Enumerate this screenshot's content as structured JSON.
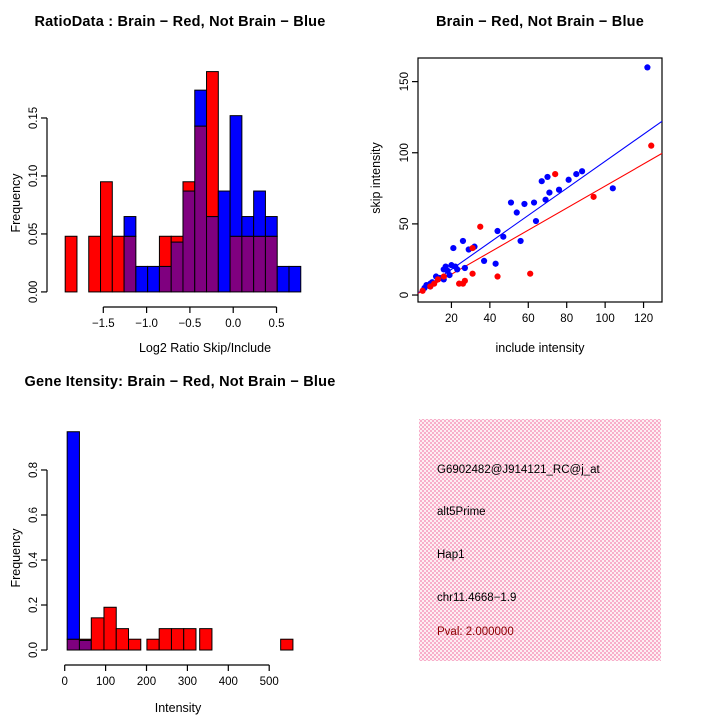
{
  "colors": {
    "red": "#FF0000",
    "blue": "#0000FF",
    "overlap": "#7F007F",
    "axis": "#000000",
    "pval_text": "#8B0000",
    "info_dot": "#F799BD",
    "info_bg": "#FDEEF2"
  },
  "info_box": {
    "probe_id": "G6902482@J914121_RC@j_at",
    "splice_type": "alt5Prime",
    "sample": "Hap1",
    "location": "chr11.4668−1.9",
    "pval": "Pval: 2.000000"
  },
  "chart_data": [
    {
      "id": "ratio-histogram-plot",
      "type": "bar",
      "subtype": "overlaid-histogram",
      "title": "RatioData : Brain − Red, Not Brain − Blue",
      "xlabel": "Log2 Ratio Skip/Include",
      "ylabel": "Frequency",
      "legend": {
        "Brain": "red",
        "Not Brain": "blue",
        "overlap": "purple"
      },
      "xlim": [
        -2.15,
        0.875
      ],
      "ylim": [
        -0.013,
        0.2
      ],
      "region": {
        "l": 47,
        "r": 309,
        "t": 60,
        "b": 307
      },
      "xaxis": {
        "y": 307,
        "line": [
          -1.5,
          0.5
        ],
        "ticks": [
          -1.5,
          -1.0,
          -0.5,
          0.0,
          0.5
        ],
        "labels": [
          "−1.5",
          "−1.0",
          "−0.5",
          "0.0",
          "0.5"
        ]
      },
      "yaxis": {
        "x": 47,
        "line": [
          0,
          0.15
        ],
        "ticks": [
          0,
          0.05,
          0.1,
          0.15
        ],
        "labels": [
          "0.00",
          "0.05",
          "0.10",
          "0.15"
        ]
      },
      "bins": [
        {
          "x0": -1.94,
          "x1": -1.804,
          "red": 0.048,
          "blue": 0
        },
        {
          "x0": -1.668,
          "x1": -1.532,
          "red": 0.048,
          "blue": 0
        },
        {
          "x0": -1.532,
          "x1": -1.396,
          "red": 0.095,
          "blue": 0
        },
        {
          "x0": -1.396,
          "x1": -1.26,
          "red": 0.048,
          "blue": 0
        },
        {
          "x0": -1.26,
          "x1": -1.124,
          "red": 0.048,
          "blue": 0.065
        },
        {
          "x0": -1.124,
          "x1": -0.988,
          "red": 0,
          "blue": 0.022
        },
        {
          "x0": -0.988,
          "x1": -0.852,
          "red": 0,
          "blue": 0.022
        },
        {
          "x0": -0.852,
          "x1": -0.716,
          "red": 0.048,
          "blue": 0.022
        },
        {
          "x0": -0.716,
          "x1": -0.58,
          "red": 0.048,
          "blue": 0.043
        },
        {
          "x0": -0.58,
          "x1": -0.444,
          "red": 0.095,
          "blue": 0.087
        },
        {
          "x0": -0.444,
          "x1": -0.308,
          "red": 0.143,
          "blue": 0.174
        },
        {
          "x0": -0.308,
          "x1": -0.172,
          "red": 0.19,
          "blue": 0.065
        },
        {
          "x0": -0.172,
          "x1": -0.036,
          "red": 0,
          "blue": 0.087
        },
        {
          "x0": -0.036,
          "x1": 0.1,
          "red": 0.048,
          "blue": 0.152
        },
        {
          "x0": 0.1,
          "x1": 0.236,
          "red": 0.048,
          "blue": 0.065
        },
        {
          "x0": 0.236,
          "x1": 0.372,
          "red": 0.048,
          "blue": 0.087
        },
        {
          "x0": 0.372,
          "x1": 0.508,
          "red": 0.048,
          "blue": 0.065
        },
        {
          "x0": 0.508,
          "x1": 0.644,
          "red": 0,
          "blue": 0.022
        },
        {
          "x0": 0.644,
          "x1": 0.78,
          "red": 0,
          "blue": 0.022
        }
      ]
    },
    {
      "id": "intensity-scatter-plot",
      "type": "scatter",
      "title": "Brain − Red, Not Brain − Blue",
      "xlabel": "include intensity",
      "ylabel": "skip intensity",
      "xlim": [
        2.6,
        129.6
      ],
      "ylim": [
        -4.9,
        166.6
      ],
      "region": {
        "l": 58,
        "r": 302,
        "t": 58,
        "b": 302
      },
      "box": true,
      "xaxis": {
        "y": 302,
        "ticks": [
          20,
          40,
          60,
          80,
          100,
          120
        ],
        "labels": [
          "20",
          "40",
          "60",
          "80",
          "100",
          "120"
        ]
      },
      "yaxis": {
        "x": 58,
        "ticks": [
          0,
          50,
          100,
          150
        ],
        "labels": [
          "0",
          "50",
          "100",
          "150"
        ]
      },
      "ablines": [
        {
          "slope": 0.95,
          "intercept": -1.0,
          "color": "blue"
        },
        {
          "slope": 0.775,
          "intercept": -0.9,
          "color": "red"
        }
      ],
      "blue_points": [
        [
          6,
          5
        ],
        [
          7,
          7
        ],
        [
          9,
          6
        ],
        [
          9,
          8
        ],
        [
          10,
          9
        ],
        [
          12,
          13
        ],
        [
          14,
          12
        ],
        [
          16,
          11
        ],
        [
          16,
          18
        ],
        [
          17,
          20
        ],
        [
          18,
          17
        ],
        [
          19,
          14
        ],
        [
          20,
          21
        ],
        [
          21,
          33
        ],
        [
          22,
          20
        ],
        [
          23,
          18
        ],
        [
          26,
          38
        ],
        [
          27,
          19
        ],
        [
          29,
          32
        ],
        [
          32,
          34
        ],
        [
          37,
          24
        ],
        [
          43,
          22
        ],
        [
          44,
          45
        ],
        [
          47,
          41
        ],
        [
          51,
          65
        ],
        [
          54,
          58
        ],
        [
          56,
          38
        ],
        [
          58,
          64
        ],
        [
          63,
          65
        ],
        [
          64,
          52
        ],
        [
          67,
          80
        ],
        [
          69,
          67
        ],
        [
          70,
          83
        ],
        [
          71,
          72
        ],
        [
          76,
          74
        ],
        [
          81,
          81
        ],
        [
          85,
          85
        ],
        [
          88,
          87
        ],
        [
          104,
          75
        ],
        [
          122,
          160
        ]
      ],
      "red_points": [
        [
          5,
          3
        ],
        [
          9,
          6
        ],
        [
          11,
          8
        ],
        [
          13,
          11
        ],
        [
          16,
          13
        ],
        [
          24,
          8
        ],
        [
          26,
          8
        ],
        [
          27,
          10
        ],
        [
          31,
          15
        ],
        [
          31,
          33
        ],
        [
          35,
          48
        ],
        [
          44,
          13
        ],
        [
          61,
          15
        ],
        [
          74,
          85
        ],
        [
          94,
          69
        ],
        [
          124,
          105
        ]
      ]
    },
    {
      "id": "gene-histogram-plot",
      "type": "bar",
      "subtype": "overlaid-histogram",
      "title": "Gene Itensity: Brain − Red, Not Brain − Blue",
      "xlabel": "Intensity",
      "ylabel": "Frequency",
      "xlim": [
        -43.3,
        597.3
      ],
      "ylim": [
        -0.0666,
        1.031
      ],
      "region": {
        "l": 47,
        "r": 309,
        "t": 58,
        "b": 305
      },
      "xaxis": {
        "y": 305,
        "line": [
          0,
          500
        ],
        "ticks": [
          0,
          100,
          200,
          300,
          400,
          500
        ],
        "labels": [
          "0",
          "100",
          "200",
          "300",
          "400",
          "500"
        ]
      },
      "yaxis": {
        "x": 47,
        "line": [
          0,
          0.8
        ],
        "ticks": [
          0,
          0.2,
          0.4,
          0.6,
          0.8
        ],
        "labels": [
          "0.0",
          "0.2",
          "0.4",
          "0.6",
          "0.8"
        ]
      },
      "bins": [
        {
          "x0": 6,
          "x1": 36,
          "red": 0.048,
          "blue": 0.97
        },
        {
          "x0": 36,
          "x1": 65,
          "red": 0.048,
          "blue": 0.043
        },
        {
          "x0": 65,
          "x1": 96,
          "red": 0.143,
          "blue": 0
        },
        {
          "x0": 96,
          "x1": 126,
          "red": 0.19,
          "blue": 0
        },
        {
          "x0": 126,
          "x1": 156,
          "red": 0.095,
          "blue": 0
        },
        {
          "x0": 156,
          "x1": 186,
          "red": 0.048,
          "blue": 0
        },
        {
          "x0": 201,
          "x1": 231,
          "red": 0.048,
          "blue": 0
        },
        {
          "x0": 231,
          "x1": 261,
          "red": 0.095,
          "blue": 0
        },
        {
          "x0": 261,
          "x1": 291,
          "red": 0.095,
          "blue": 0
        },
        {
          "x0": 291,
          "x1": 321,
          "red": 0.095,
          "blue": 0
        },
        {
          "x0": 330,
          "x1": 360,
          "red": 0.095,
          "blue": 0
        },
        {
          "x0": 528,
          "x1": 558,
          "red": 0.048,
          "blue": 0
        }
      ]
    }
  ]
}
